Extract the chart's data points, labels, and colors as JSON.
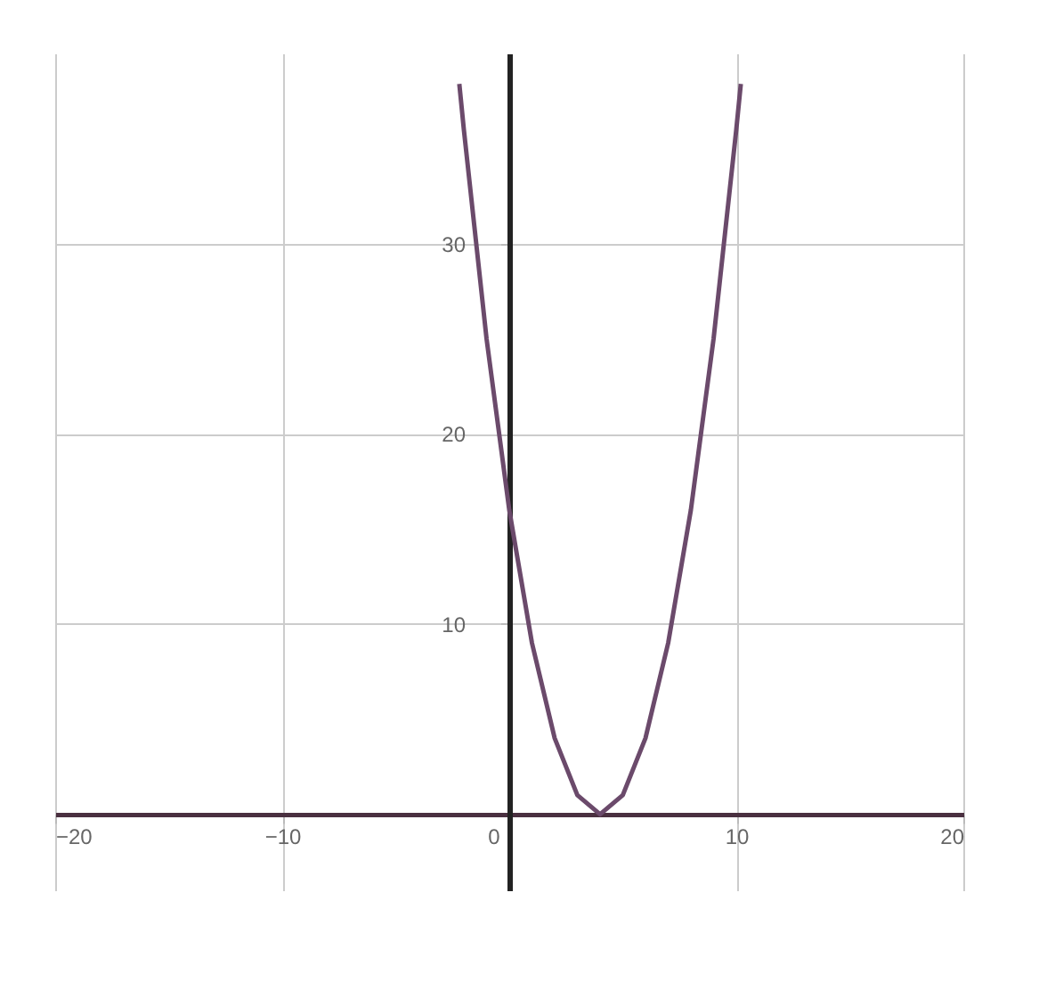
{
  "chart_data": {
    "type": "line",
    "x": [
      -2.2,
      -2,
      -1,
      0,
      1,
      2,
      3,
      4,
      5,
      6,
      7,
      8,
      9,
      10,
      10.2
    ],
    "series": [
      {
        "color": "#6b4a6b",
        "values": [
          38.4,
          36,
          25,
          16,
          9,
          4,
          1,
          0,
          1,
          4,
          9,
          16,
          25,
          36,
          38.4
        ]
      }
    ],
    "xlim": [
      -20,
      20
    ],
    "xticks": [
      -20,
      -10,
      0,
      10,
      20
    ],
    "ylim": [
      -4,
      40
    ],
    "yticks": [
      10,
      20,
      30
    ],
    "grid": true,
    "marker": "none",
    "line_style": "solid"
  }
}
